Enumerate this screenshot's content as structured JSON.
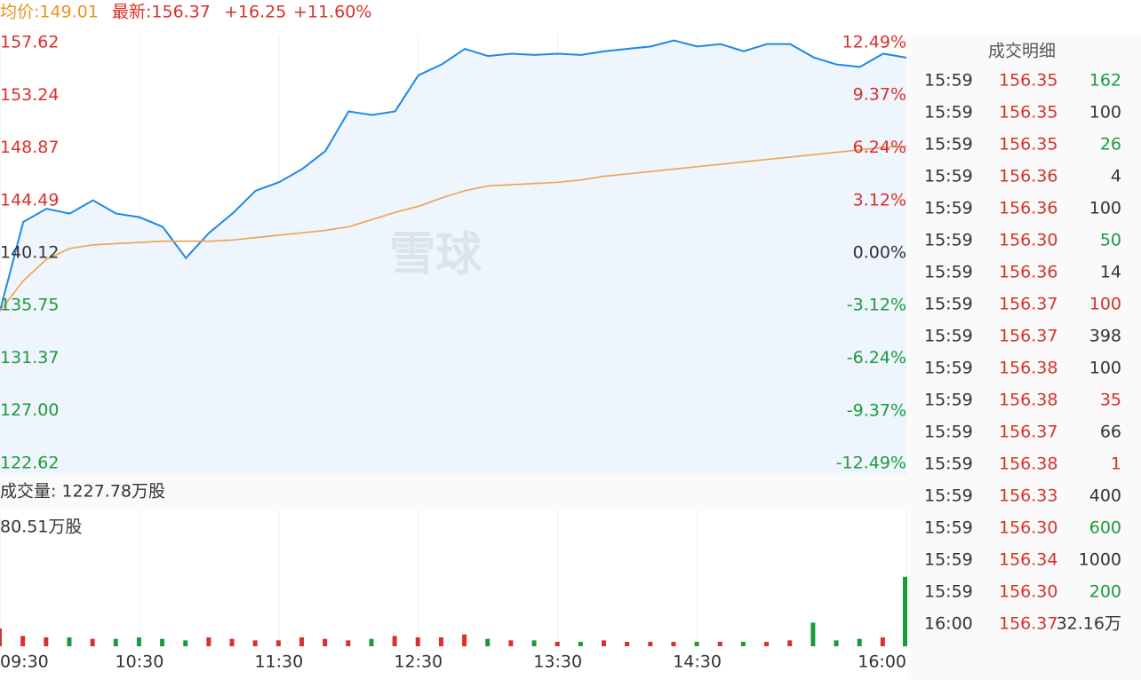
{
  "header": {
    "avg": "均价:149.01",
    "latest": "最新:156.37",
    "change": "+16.25",
    "change_pct": "+11.60%"
  },
  "watermark": "雪球",
  "chart_data": [
    {
      "type": "line",
      "x": [
        "09:30",
        "09:40",
        "09:50",
        "10:00",
        "10:10",
        "10:20",
        "10:30",
        "10:40",
        "10:50",
        "11:00",
        "11:10",
        "11:20",
        "11:30",
        "11:40",
        "11:50",
        "12:00",
        "12:10",
        "12:20",
        "12:30",
        "12:40",
        "12:50",
        "13:00",
        "13:10",
        "13:20",
        "13:30",
        "13:40",
        "13:50",
        "14:00",
        "14:10",
        "14:20",
        "14:30",
        "14:40",
        "14:50",
        "15:00",
        "15:10",
        "15:20",
        "15:30",
        "15:40",
        "15:50",
        "16:00"
      ],
      "series": [
        {
          "color": "#1e88e5",
          "values": [
            135.3,
            142.7,
            143.8,
            143.4,
            144.5,
            143.4,
            143.1,
            142.3,
            139.7,
            141.8,
            143.4,
            145.3,
            146.0,
            147.1,
            148.6,
            151.9,
            151.6,
            151.9,
            154.9,
            155.8,
            157.1,
            156.5,
            156.7,
            156.6,
            156.7,
            156.6,
            156.9,
            157.1,
            157.3,
            157.8,
            157.3,
            157.5,
            156.9,
            157.5,
            157.5,
            156.4,
            155.8,
            155.6,
            156.7,
            156.37
          ]
        },
        {
          "color": "#f0a04b",
          "values": [
            135.3,
            137.8,
            139.6,
            140.5,
            140.8,
            140.9,
            141.0,
            141.1,
            141.1,
            141.1,
            141.2,
            141.4,
            141.6,
            141.8,
            142.0,
            142.3,
            142.9,
            143.5,
            144.0,
            144.7,
            145.3,
            145.7,
            145.8,
            145.9,
            146.0,
            146.2,
            146.5,
            146.7,
            146.9,
            147.1,
            147.3,
            147.5,
            147.7,
            147.9,
            148.1,
            148.3,
            148.5,
            148.7,
            148.9,
            149.0
          ]
        }
      ],
      "ylim": [
        122.62,
        157.62
      ],
      "yticks": [
        {
          "value": 122.62,
          "label": "122.62"
        },
        {
          "value": 127,
          "label": "127.00"
        },
        131.37,
        135.75,
        140.12,
        144.49,
        148.87,
        153.24,
        157.62
      ],
      "base": 140.12,
      "y2lim": [
        -12.49,
        12.49
      ],
      "y2ticks": [
        {
          "value": -12.49,
          "label": "-12.49%"
        },
        {
          "value": -9.37,
          "label": "-9.37%"
        },
        {
          "value": -6.24,
          "label": "-6.24%"
        },
        {
          "value": -3.12,
          "label": "-3.12%"
        },
        {
          "value": 0,
          "label": "0.00%"
        },
        {
          "value": 3.12,
          "label": "3.12%"
        },
        {
          "value": 6.24,
          "label": "6.24%"
        },
        {
          "value": 9.37,
          "label": "9.37%"
        },
        {
          "value": 12.49,
          "label": "12.49%"
        }
      ],
      "xticks": [
        "09:30",
        "10:30",
        "11:30",
        "12:30",
        "13:30",
        "14:30",
        "16:00"
      ],
      "xlim": [
        "09:30",
        "16:00"
      ],
      "up_color": "#d9302c",
      "down_color": "#1a9b3a",
      "flat_color": "#333333",
      "area_color": "#eef5fc"
    },
    {
      "type": "bar",
      "title": "成交量: 1227.78万股",
      "values": [
        12,
        7,
        6,
        6,
        5,
        5,
        6,
        5,
        4,
        6,
        5,
        4,
        4,
        6,
        5,
        4,
        5,
        7,
        6,
        6,
        8,
        5,
        4,
        4,
        3,
        3,
        4,
        3,
        3,
        3,
        3,
        3,
        3,
        3,
        4,
        16,
        4,
        5,
        6,
        47
      ],
      "ylim": [
        0,
        80.51
      ],
      "yticks": [
        {
          "value": 80.51,
          "label": "80.51万股"
        }
      ]
    }
  ],
  "trades": {
    "title": "成交明细",
    "rows": [
      {
        "time": "15:59",
        "price": "156.35",
        "volume": "162",
        "color": "#1a9b3a"
      },
      {
        "time": "15:59",
        "price": "156.35",
        "volume": "100",
        "color": "#333333"
      },
      {
        "time": "15:59",
        "price": "156.35",
        "volume": "26",
        "color": "#1a9b3a"
      },
      {
        "time": "15:59",
        "price": "156.36",
        "volume": "4",
        "color": "#333333"
      },
      {
        "time": "15:59",
        "price": "156.36",
        "volume": "100",
        "color": "#333333"
      },
      {
        "time": "15:59",
        "price": "156.30",
        "volume": "50",
        "color": "#1a9b3a"
      },
      {
        "time": "15:59",
        "price": "156.36",
        "volume": "14",
        "color": "#333333"
      },
      {
        "time": "15:59",
        "price": "156.37",
        "volume": "100",
        "color": "#d9302c"
      },
      {
        "time": "15:59",
        "price": "156.37",
        "volume": "398",
        "color": "#333333"
      },
      {
        "time": "15:59",
        "price": "156.38",
        "volume": "100",
        "color": "#333333"
      },
      {
        "time": "15:59",
        "price": "156.38",
        "volume": "35",
        "color": "#d9302c"
      },
      {
        "time": "15:59",
        "price": "156.37",
        "volume": "66",
        "color": "#333333"
      },
      {
        "time": "15:59",
        "price": "156.38",
        "volume": "1",
        "color": "#d9302c"
      },
      {
        "time": "15:59",
        "price": "156.33",
        "volume": "400",
        "color": "#333333"
      },
      {
        "time": "15:59",
        "price": "156.30",
        "volume": "600",
        "color": "#1a9b3a"
      },
      {
        "time": "15:59",
        "price": "156.34",
        "volume": "1000",
        "color": "#333333"
      },
      {
        "time": "15:59",
        "price": "156.30",
        "volume": "200",
        "color": "#1a9b3a"
      },
      {
        "time": "16:00",
        "price": "156.37",
        "volume": "32.16万",
        "color": "#333333"
      }
    ]
  }
}
